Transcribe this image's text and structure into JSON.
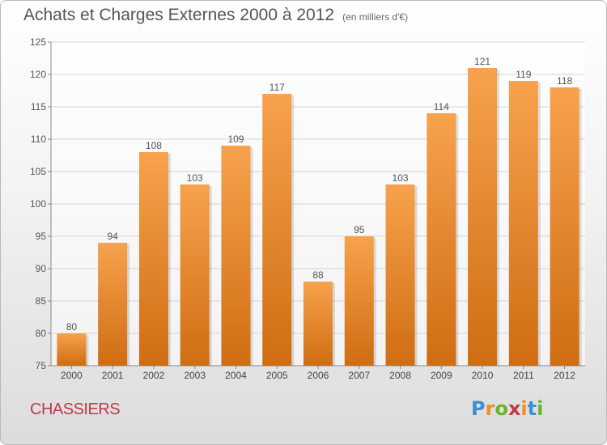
{
  "chart_data": {
    "type": "bar",
    "title": "Achats et Charges Externes 2000 à 2012",
    "subtitle": "(en milliers d'€)",
    "categories": [
      "2000",
      "2001",
      "2002",
      "2003",
      "2004",
      "2005",
      "2006",
      "2007",
      "2008",
      "2009",
      "2010",
      "2011",
      "2012"
    ],
    "values": [
      80,
      94,
      108,
      103,
      109,
      117,
      88,
      95,
      103,
      114,
      121,
      119,
      118
    ],
    "ylim": [
      75,
      125
    ],
    "yticks": [
      75,
      80,
      85,
      90,
      95,
      100,
      105,
      110,
      115,
      120,
      125
    ],
    "grid": true,
    "bar_color_top": "#f7a24d",
    "bar_color_bottom": "#cf6d12"
  },
  "footer": {
    "location": "CHASSIERS",
    "logo_text": "Proxiti"
  },
  "colors": {
    "location_text": "#c0394b",
    "logo_letters": [
      "#3d8fd6",
      "#e8902a",
      "#6ab42d",
      "#c0394b",
      "#e8902a",
      "#3d8fd6",
      "#6ab42d"
    ]
  }
}
